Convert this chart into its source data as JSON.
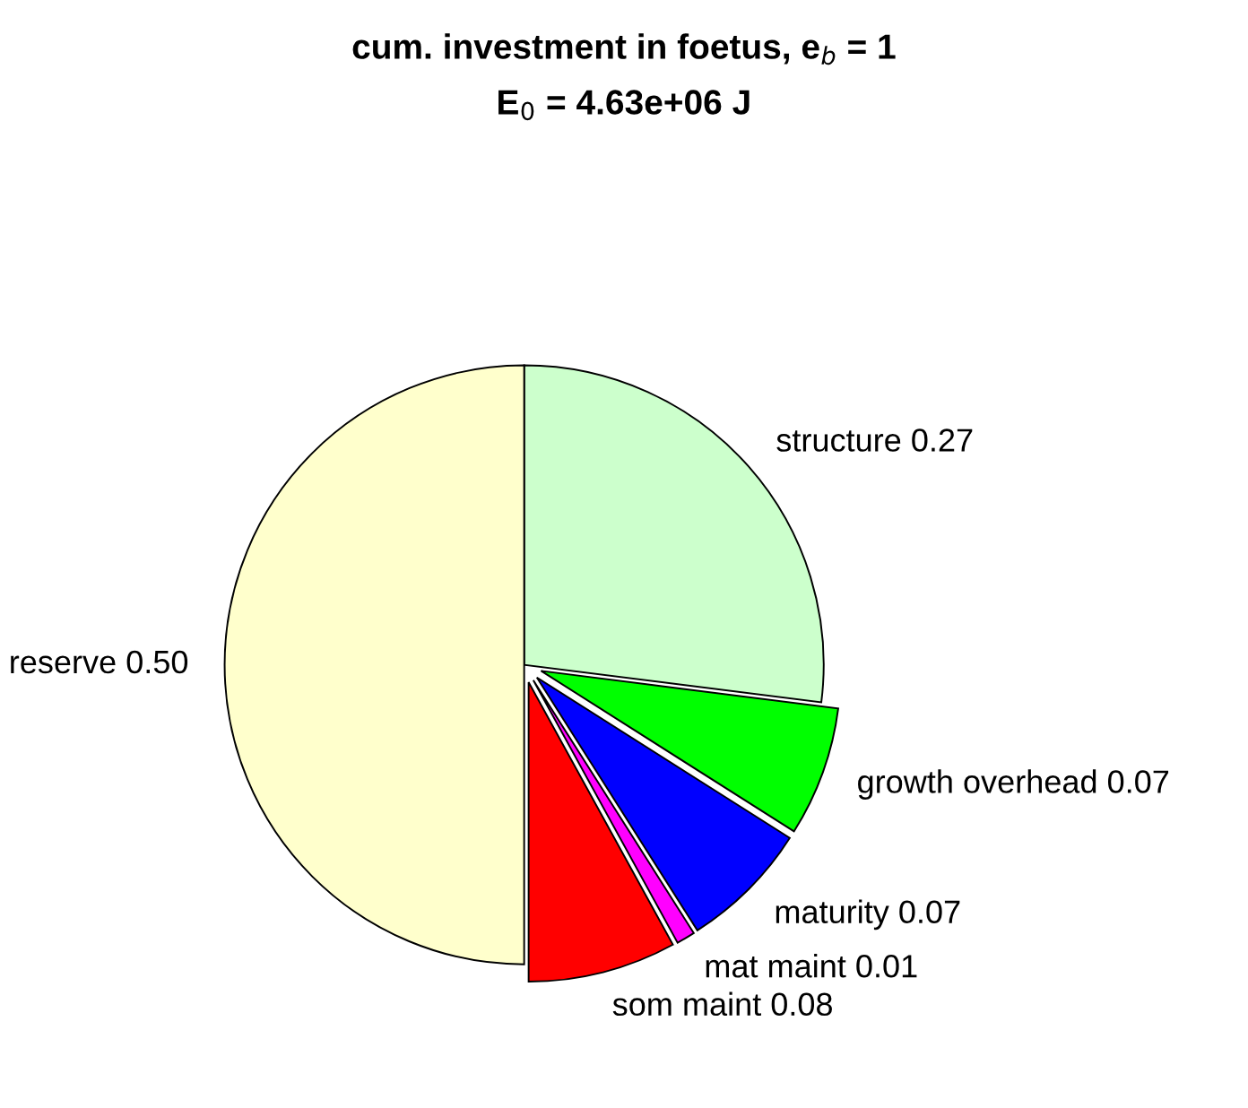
{
  "chart_data": {
    "type": "pie",
    "title": "cum. investment in foetus, e$_{b}$ = 1",
    "subtitle": "E$_{0}$ = 4.63e+06 J",
    "categories": [
      "structure",
      "growth overhead",
      "maturity",
      "mat maint",
      "som maint",
      "reserve"
    ],
    "values": [
      0.27,
      0.07,
      0.07,
      0.01,
      0.08,
      0.5
    ],
    "value_labels": [
      "0.27",
      "0.07",
      "0.07",
      "0.01",
      "0.08",
      "0.50"
    ],
    "colors": [
      "#ccffcc",
      "#00ff00",
      "#0000ff",
      "#ff00ff",
      "#ff0000",
      "#ffffcc"
    ],
    "legend": false
  }
}
